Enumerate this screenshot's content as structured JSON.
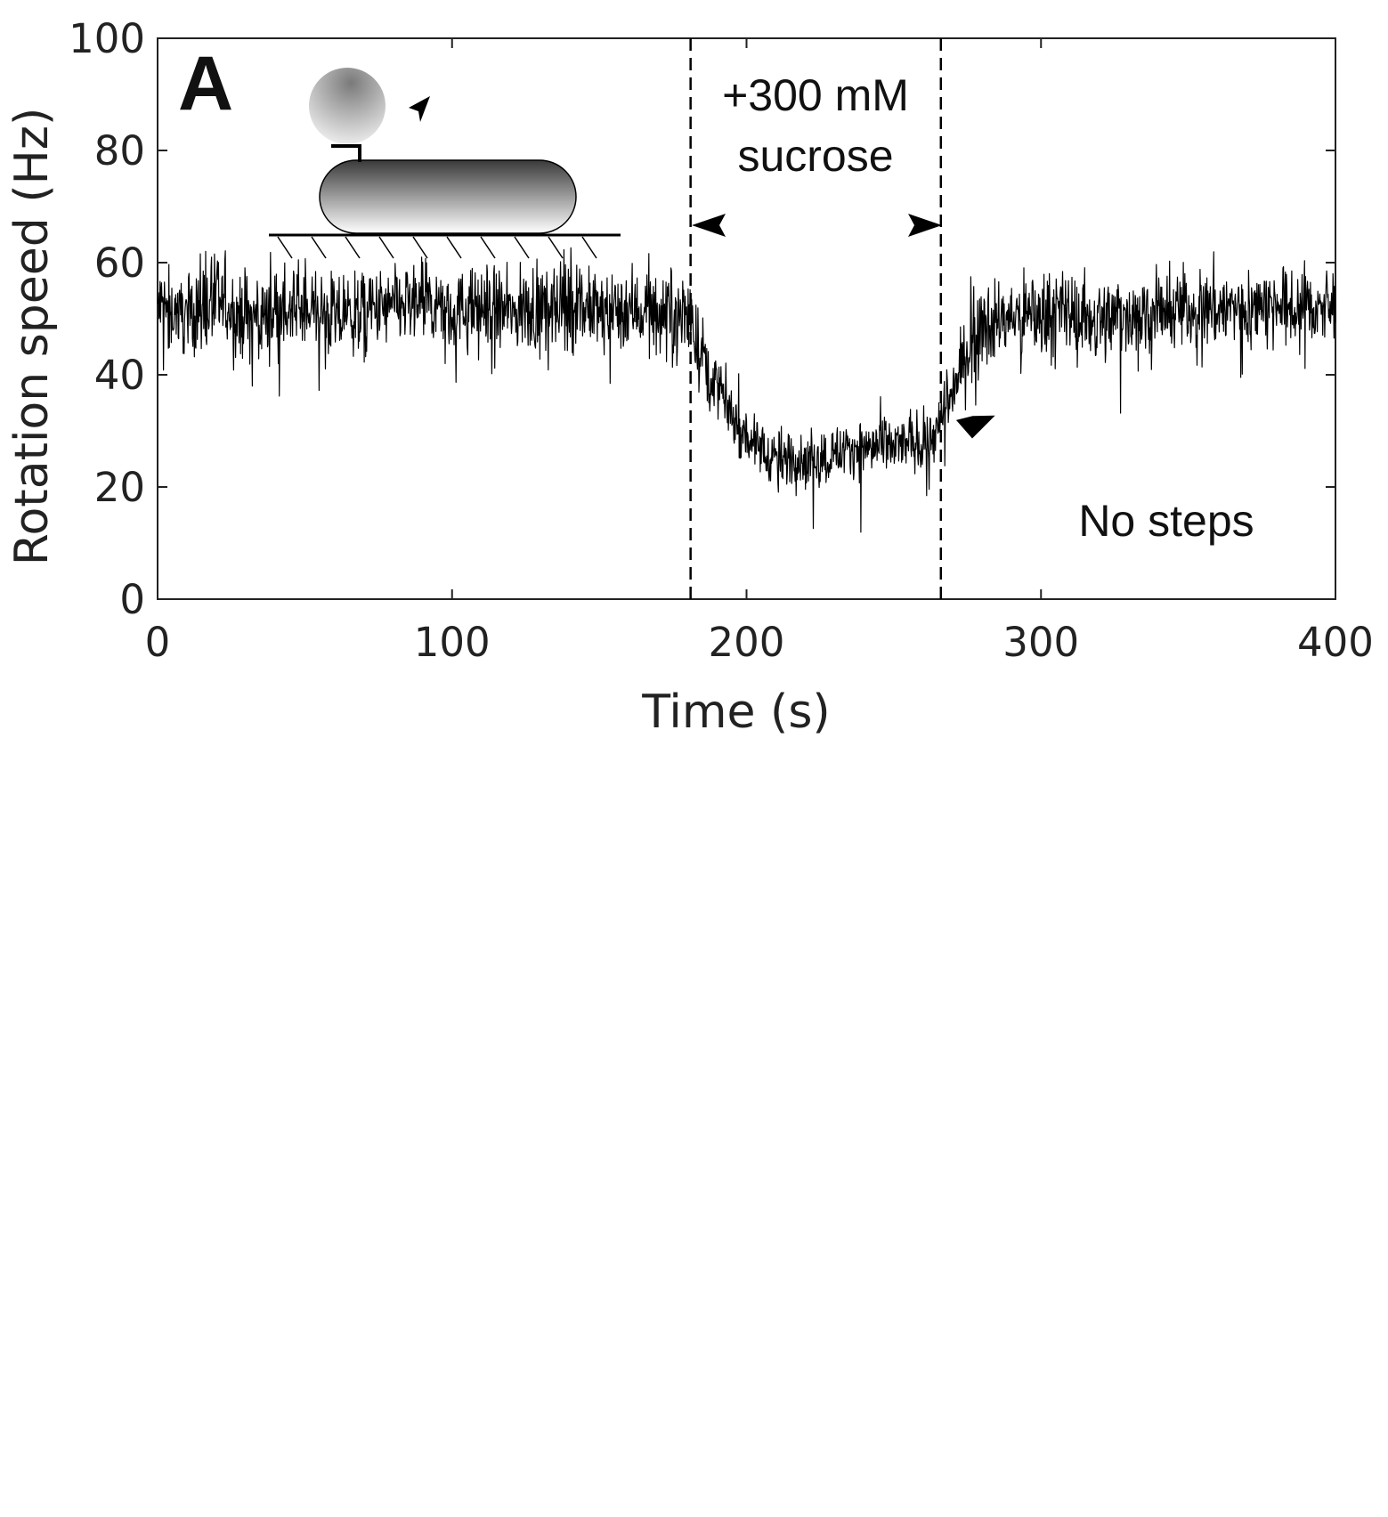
{
  "figure": {
    "panel_label": "A",
    "background": "#ffffff",
    "trace_color": "#000000"
  },
  "chart_data": {
    "type": "line",
    "title": "",
    "xlabel": "Time (s)",
    "ylabel": "Rotation speed (Hz)",
    "xlim": [
      0,
      400
    ],
    "ylim": [
      0,
      100
    ],
    "xticks": [
      0,
      100,
      200,
      300,
      400
    ],
    "yticks": [
      0,
      20,
      40,
      60,
      80,
      100
    ],
    "xtick_labels": [
      "0",
      "100",
      "200",
      "300",
      "400"
    ],
    "ytick_labels": [
      "0",
      "20",
      "40",
      "60",
      "80",
      "100"
    ],
    "grid": false,
    "legend": "none",
    "series": [
      {
        "color": "#000000",
        "x": [
          0,
          10,
          20,
          30,
          40,
          50,
          60,
          70,
          80,
          90,
          100,
          110,
          120,
          130,
          140,
          150,
          160,
          170,
          180,
          184,
          188,
          192,
          196,
          200,
          205,
          210,
          215,
          220,
          225,
          230,
          235,
          240,
          245,
          250,
          255,
          260,
          265,
          268,
          272,
          276,
          280,
          290,
          300,
          310,
          320,
          330,
          340,
          350,
          360,
          370,
          380,
          390,
          400
        ],
        "y": [
          52,
          51,
          53,
          50,
          51,
          52,
          50,
          51,
          52,
          53,
          51,
          52,
          51,
          52,
          53,
          51,
          52,
          51,
          51,
          45,
          40,
          36,
          32,
          29,
          27,
          25,
          25,
          25,
          25,
          26,
          27,
          27,
          27,
          27,
          28,
          28,
          30,
          34,
          40,
          46,
          49,
          50,
          51,
          51,
          50,
          51,
          51,
          52,
          52,
          52,
          52,
          52,
          52
        ]
      }
    ],
    "events": [
      {
        "x": 181
      },
      {
        "x": 266
      }
    ],
    "annotations": [
      {
        "text": "+300 mM",
        "x": 222,
        "y": 90
      },
      {
        "text": "sucrose",
        "x": 222,
        "y": 79
      },
      {
        "text": "No steps",
        "x": 340,
        "y": 14
      }
    ]
  }
}
